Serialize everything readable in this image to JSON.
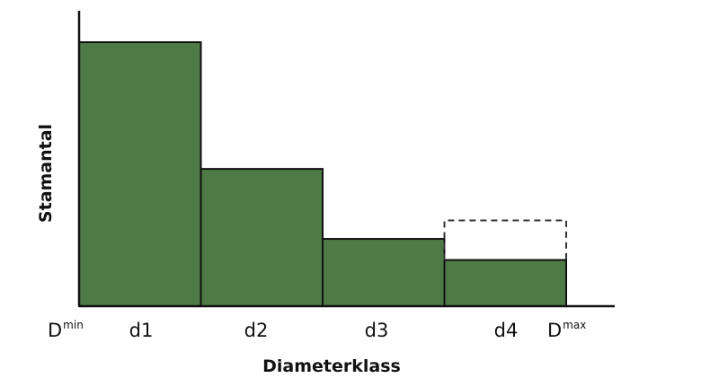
{
  "chart_data": {
    "type": "bar",
    "xlabel": "Diameterklass",
    "ylabel": "Stamantal",
    "categories": [
      "d1",
      "d2",
      "d3",
      "d4"
    ],
    "values": [
      100,
      52,
      25.5,
      17.5
    ],
    "projected": [
      {
        "category": "d4",
        "value": 32.5,
        "style": "dashed"
      }
    ],
    "bounds": {
      "min": {
        "base": "D",
        "sup": "min"
      },
      "max": {
        "base": "D",
        "sup": "max"
      }
    },
    "ylim": [
      0,
      100
    ],
    "grid": false,
    "legend": "none",
    "colors": {
      "bar_fill": "#4d7a45",
      "bar_stroke": "#111111",
      "axis": "#111111",
      "dashed": "#333333"
    }
  }
}
